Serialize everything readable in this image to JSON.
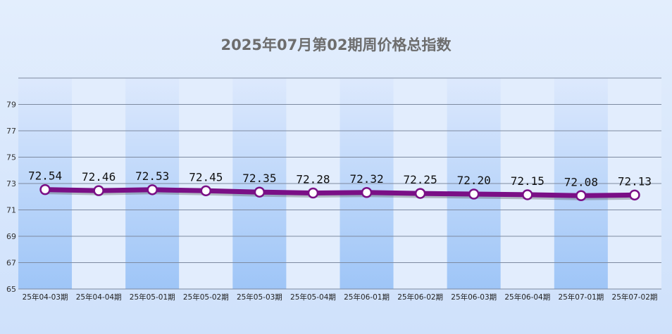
{
  "chart_data": {
    "type": "line",
    "title": "2025年07月第02期周价格总指数",
    "xlabel": "",
    "ylabel": "",
    "categories": [
      "25年04-03期",
      "25年04-04期",
      "25年05-01期",
      "25年05-02期",
      "25年05-03期",
      "25年05-04期",
      "25年06-01期",
      "25年06-02期",
      "25年06-03期",
      "25年06-04期",
      "25年07-01期",
      "25年07-02期"
    ],
    "series": [
      {
        "values": [
          72.54,
          72.46,
          72.53,
          72.45,
          72.35,
          72.28,
          72.32,
          72.25,
          72.2,
          72.15,
          72.08,
          72.13
        ]
      }
    ],
    "data_labels": [
      "72.54",
      "72.46",
      "72.53",
      "72.45",
      "72.35",
      "72.28",
      "72.32",
      "72.25",
      "72.20",
      "72.15",
      "72.08",
      "72.13"
    ],
    "ylim": [
      65,
      81
    ],
    "yticks": [
      65,
      67,
      69,
      71,
      73,
      75,
      77,
      79
    ],
    "grid": true,
    "legend": "none",
    "colors": {
      "line": "#7a0f86",
      "marker_fill": "#ffffff",
      "band_dark_top": "#dbe8fd",
      "band_dark_bottom": "#9cc4f7",
      "band_light": "#e2edfd",
      "grid": "#7d8aa0"
    }
  }
}
